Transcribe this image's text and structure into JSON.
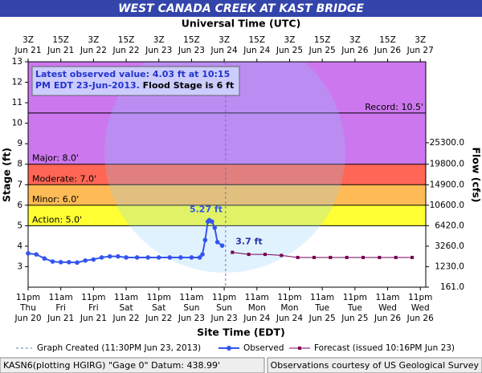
{
  "chart_data": {
    "type": "line",
    "title": "WEST CANADA CREEK AT KAST BRIDGE",
    "top_axis_label": "Universal Time (UTC)",
    "xlabel": "Site Time (EDT)",
    "ylabel": "Stage (ft)",
    "y2label": "Flow (cfs)",
    "xlim": [
      0,
      146
    ],
    "ylim": [
      2,
      13
    ],
    "yticks": [
      3,
      4,
      5,
      6,
      7,
      8,
      9,
      10,
      11,
      12,
      13
    ],
    "xticks": [
      {
        "value": 0,
        "label": "11pm"
      },
      {
        "value": 12,
        "label": "11am"
      },
      {
        "value": 24,
        "label": "11pm"
      },
      {
        "value": 36,
        "label": "11am"
      },
      {
        "value": 48,
        "label": "11pm"
      },
      {
        "value": 60,
        "label": "11am"
      },
      {
        "value": 72,
        "label": "11pm"
      },
      {
        "value": 84,
        "label": "11am"
      },
      {
        "value": 96,
        "label": "11pm"
      },
      {
        "value": 108,
        "label": "11am"
      },
      {
        "value": 120,
        "label": "11pm"
      },
      {
        "value": 132,
        "label": "11am"
      },
      {
        "value": 144,
        "label": "11pm"
      }
    ],
    "xtick_days": [
      "Thu",
      "Fri",
      "Fri",
      "Sat",
      "Sat",
      "Sun",
      "Sun",
      "Mon",
      "Mon",
      "Tue",
      "Tue",
      "Wed",
      "Wed"
    ],
    "xtick_dates": [
      "Jun 20",
      "Jun 21",
      "Jun 21",
      "Jun 22",
      "Jun 22",
      "Jun 23",
      "Jun 23",
      "Jun 24",
      "Jun 24",
      "Jun 25",
      "Jun 25",
      "Jun 26",
      "Jun 26"
    ],
    "x2ticks": [
      {
        "value": 0,
        "label": "3Z"
      },
      {
        "value": 12,
        "label": "15Z"
      },
      {
        "value": 24,
        "label": "3Z"
      },
      {
        "value": 36,
        "label": "15Z"
      },
      {
        "value": 48,
        "label": "3Z"
      },
      {
        "value": 60,
        "label": "15Z"
      },
      {
        "value": 72,
        "label": "3Z"
      },
      {
        "value": 84,
        "label": "15Z"
      },
      {
        "value": 96,
        "label": "3Z"
      },
      {
        "value": 108,
        "label": "15Z"
      },
      {
        "value": 120,
        "label": "3Z"
      },
      {
        "value": 132,
        "label": "15Z"
      },
      {
        "value": 144,
        "label": "3Z"
      }
    ],
    "x2tick_dates": [
      "Jun 21",
      "Jun 21",
      "Jun 22",
      "Jun 22",
      "Jun 23",
      "Jun 23",
      "Jun 24",
      "Jun 24",
      "Jun 25",
      "Jun 25",
      "Jun 26",
      "Jun 26",
      "Jun 27"
    ],
    "flow_ticks": [
      {
        "stage": 2,
        "flow": 161,
        "label": "161.0"
      },
      {
        "stage": 3,
        "flow": 1230,
        "label": "1230.0"
      },
      {
        "stage": 4,
        "flow": 3260,
        "label": "3260.0"
      },
      {
        "stage": 5,
        "flow": 6420,
        "label": "6420.0"
      },
      {
        "stage": 6,
        "flow": 10600,
        "label": "10600.0"
      },
      {
        "stage": 7,
        "flow": 14900,
        "label": "14900.0"
      },
      {
        "stage": 8,
        "flow": 19800,
        "label": "19800.0"
      },
      {
        "stage": 9.05,
        "flow": 25300,
        "label": "25300.0"
      }
    ],
    "flood_categories": [
      {
        "label": "Action: 5.0'",
        "lower": 5,
        "color": "#ffff33"
      },
      {
        "label": "Minor: 6.0'",
        "lower": 6,
        "color": "#ffbb55"
      },
      {
        "label": "Moderate: 7.0'",
        "lower": 7,
        "color": "#ff6655"
      },
      {
        "label": "Major: 8.0'",
        "lower": 8,
        "color": "#cc77ee"
      }
    ],
    "record": {
      "label": "Record: 10.5'",
      "value": 10.5
    },
    "created": {
      "x": 72.5,
      "legend": "Graph Created (11:30PM Jun 23, 2013)"
    },
    "annotation": {
      "observed": "Latest observed value: 4.03 ft at 10:15 PM EDT 23-Jun-2013.",
      "flood_stage": "Flood Stage is 6 ft"
    },
    "series": [
      {
        "name": "Observed",
        "color": "#3355ee",
        "x": [
          0,
          3,
          6,
          9,
          12,
          15,
          18,
          21,
          24,
          27,
          30,
          33,
          36,
          40,
          44,
          48,
          52,
          56,
          60,
          63,
          64,
          65,
          66,
          66.5,
          67.5,
          68.5,
          69.5,
          71.25
        ],
        "values": [
          3.65,
          3.6,
          3.4,
          3.25,
          3.22,
          3.22,
          3.2,
          3.3,
          3.35,
          3.45,
          3.5,
          3.5,
          3.45,
          3.45,
          3.45,
          3.45,
          3.45,
          3.45,
          3.45,
          3.45,
          3.6,
          4.3,
          5.2,
          5.27,
          5.2,
          4.9,
          4.2,
          4.03
        ],
        "point_label": "5.27 ft",
        "point_label_index": 23
      },
      {
        "name": "Forecast (issued 10:16PM Jun 23)",
        "color": "#770055",
        "x": [
          75,
          81,
          87,
          93,
          99,
          105,
          111,
          117,
          123,
          129,
          135,
          141
        ],
        "values": [
          3.7,
          3.6,
          3.6,
          3.55,
          3.45,
          3.45,
          3.45,
          3.45,
          3.45,
          3.45,
          3.45,
          3.45
        ],
        "point_label": "3.7 ft",
        "point_label_index": 0
      }
    ],
    "footer_left": "KASN6(plotting HGIRG) \"Gage 0\" Datum: 438.99'",
    "footer_right": "Observations courtesy of US Geological Survey"
  }
}
